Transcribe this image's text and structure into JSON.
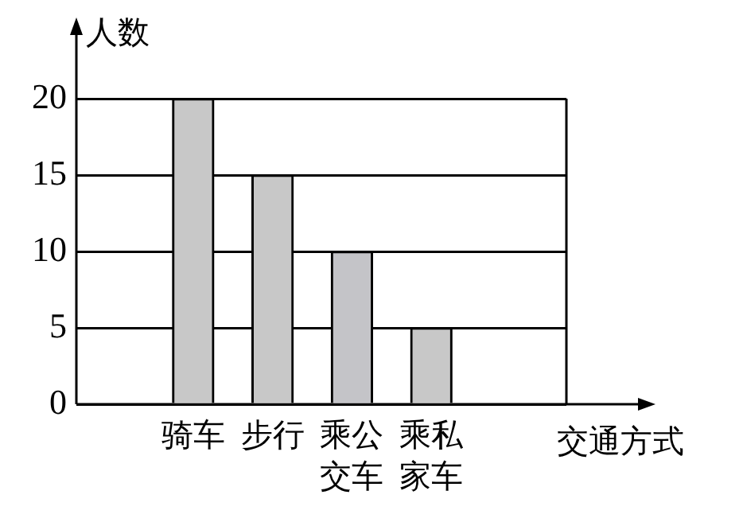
{
  "chart_data": {
    "type": "bar",
    "xlabel": "交通方式",
    "ylabel": "人数",
    "categories": [
      "骑车",
      "步行",
      "乘公交车",
      "乘私家车"
    ],
    "values": [
      20,
      15,
      10,
      5
    ],
    "colors": [
      "#c8c8c8",
      "#c8c8c8",
      "#c4c4c8",
      "#c8c8c8"
    ],
    "ylim": [
      0,
      20
    ],
    "yticks": [
      0,
      5,
      10,
      15,
      20
    ],
    "grid": "y",
    "legend": false
  }
}
